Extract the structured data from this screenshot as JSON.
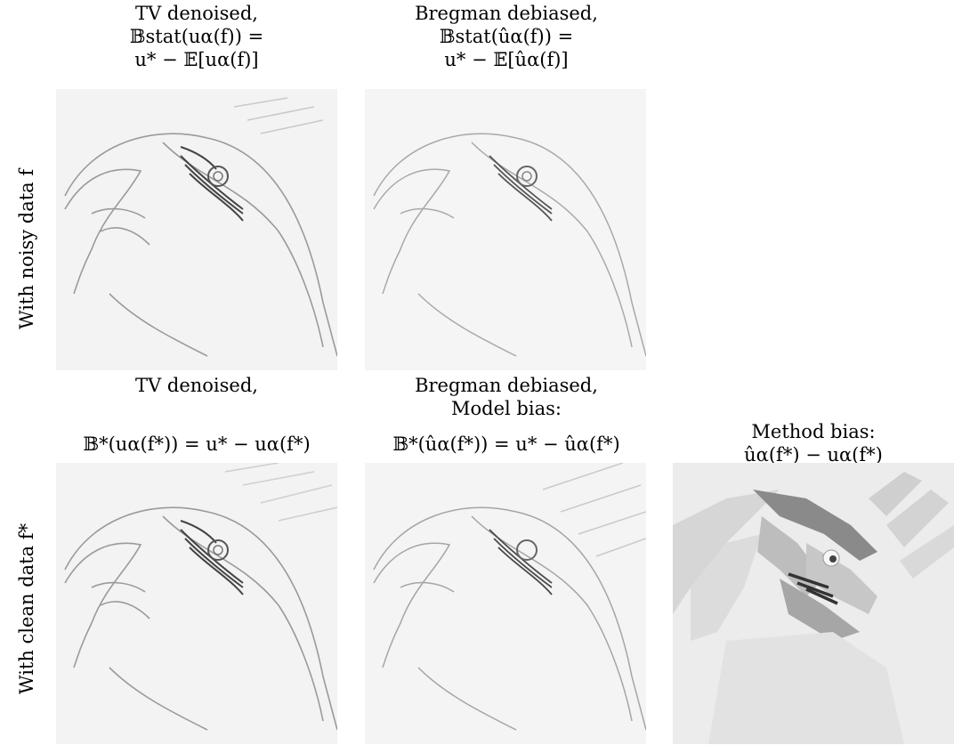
{
  "row_labels": {
    "top": "With noisy data f",
    "bottom": "With clean data f*"
  },
  "panels": {
    "top_left": {
      "line1": "TV denoised,",
      "line2": "𝔹stat(uα(f)) =",
      "line3": "u* − 𝔼[uα(f)]"
    },
    "top_mid": {
      "line1": "Bregman debiased,",
      "line2": "𝔹stat(ûα(f)) =",
      "line3": "u* − 𝔼[ûα(f)]"
    },
    "bottom_left": {
      "line1": "TV denoised,",
      "line2": "",
      "line3": "𝔹*(uα(f*)) = u* − uα(f*)"
    },
    "bottom_mid": {
      "line1": "Bregman debiased,",
      "line2": "Model bias:",
      "line3": "𝔹*(ûα(f*)) = u* − ûα(f*)"
    },
    "bottom_right": {
      "line1": "",
      "line2": "Method bias:",
      "line3": "ûα(f*) − uα(f*)"
    }
  }
}
